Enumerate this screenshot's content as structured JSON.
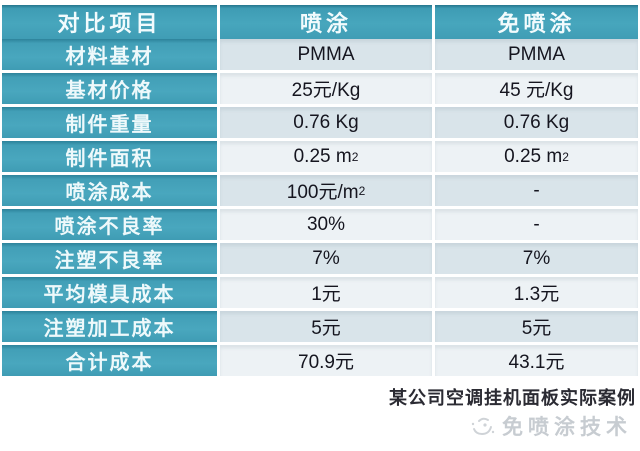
{
  "chart_data": {
    "type": "table",
    "title": "",
    "columns": [
      "对比项目",
      "喷涂",
      "免喷涂"
    ],
    "rows": [
      [
        "材料基材",
        "PMMA",
        "PMMA"
      ],
      [
        "基材价格",
        "25元/Kg",
        "45 元/Kg"
      ],
      [
        "制件重量",
        "0.76 Kg",
        "0.76 Kg"
      ],
      [
        "制件面积",
        "0.25 m²",
        "0.25 m²"
      ],
      [
        "喷涂成本",
        "100元/m²",
        "-"
      ],
      [
        "喷涂不良率",
        "30%",
        "-"
      ],
      [
        "注塑不良率",
        "7%",
        "7%"
      ],
      [
        "平均模具成本",
        "1元",
        "1.3元"
      ],
      [
        "注塑加工成本",
        "5元",
        "5元"
      ],
      [
        "合计成本",
        "70.9元",
        "43.1元"
      ]
    ],
    "layout": {
      "header_background": "#47a6bd",
      "label_column_background": "#47a6bd",
      "band_colors": [
        "#d9e4ea",
        "#edf2f5"
      ],
      "grid": "white-gaps"
    }
  },
  "footer": {
    "caption": "某公司空调挂机面板实际案例",
    "watermark_text": "免喷涂技术",
    "watermark_icon": "swirl-face-logo"
  },
  "colors": {
    "teal": "#47a6bd",
    "teal_edge": "#25758c",
    "band_dark": "#d9e4ea",
    "band_light": "#edf2f5",
    "value_text": "#15151f",
    "caption_text": "#2b2b33",
    "watermark": "#c7ccd1"
  }
}
